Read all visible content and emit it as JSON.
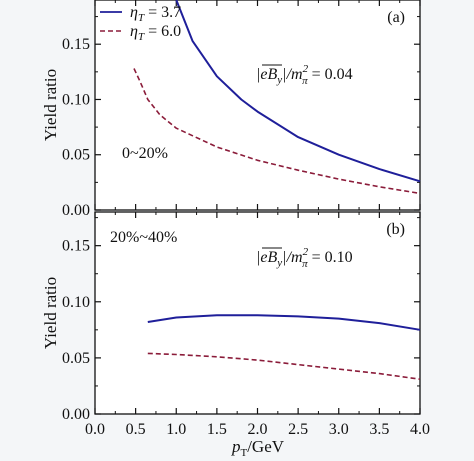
{
  "chart_data": {
    "xlabel_main": "p",
    "xlabel_sub": "T",
    "xlabel_unit": "/GeV",
    "xlim": [
      0.0,
      4.0
    ],
    "xticks": [
      "0.0",
      "0.5",
      "1.0",
      "1.5",
      "2.0",
      "2.5",
      "3.0",
      "3.5",
      "4.0"
    ],
    "colors": {
      "eta37": "#1f1f9a",
      "eta60": "#8b1c3a"
    },
    "legend": [
      {
        "main": "η",
        "sub": "T",
        "value": " = 3.7",
        "style": "solid"
      },
      {
        "main": "η",
        "sub": "T",
        "value": " = 6.0",
        "style": "dashed"
      }
    ],
    "panels": [
      {
        "type": "line",
        "tag": "(a)",
        "ylabel": "Yield ratio",
        "ylim": [
          0.0,
          0.19
        ],
        "yticks": [
          "0.00",
          "0.05",
          "0.10",
          "0.15"
        ],
        "centrality": "0~20%",
        "field_label": {
          "lhs": "|eB",
          "lhs_sub": "y",
          "mid": "|/m",
          "mid_sup": "2",
          "mid_sub": "π",
          "rhs": " = 0.04"
        },
        "series": [
          {
            "key": "eta37",
            "x": [
              1.0,
              1.2,
              1.5,
              1.8,
              2.0,
              2.5,
              3.0,
              3.5,
              4.0
            ],
            "y": [
              0.19,
              0.153,
              0.121,
              0.1,
              0.089,
              0.066,
              0.05,
              0.037,
              0.026
            ]
          },
          {
            "key": "eta60",
            "x": [
              0.48,
              0.55,
              0.65,
              0.8,
              1.0,
              1.5,
              2.0,
              2.5,
              3.0,
              3.5,
              4.0
            ],
            "y": [
              0.128,
              0.117,
              0.1,
              0.086,
              0.074,
              0.057,
              0.045,
              0.036,
              0.028,
              0.021,
              0.015
            ]
          }
        ]
      },
      {
        "type": "line",
        "tag": "(b)",
        "ylabel": "Yield ratio",
        "ylim": [
          0.0,
          0.18
        ],
        "yticks": [
          "0.00",
          "0.05",
          "0.10",
          "0.15"
        ],
        "centrality": "20%~40%",
        "field_label": {
          "lhs": "|eB",
          "lhs_sub": "y",
          "mid": "|/m",
          "mid_sup": "2",
          "mid_sub": "π",
          "rhs": " = 0.10"
        },
        "series": [
          {
            "key": "eta37",
            "x": [
              0.65,
              1.0,
              1.5,
              2.0,
              2.5,
              3.0,
              3.5,
              4.0
            ],
            "y": [
              0.082,
              0.086,
              0.088,
              0.088,
              0.087,
              0.085,
              0.081,
              0.075
            ]
          },
          {
            "key": "eta60",
            "x": [
              0.65,
              1.0,
              1.5,
              2.0,
              2.5,
              3.0,
              3.5,
              4.0
            ],
            "y": [
              0.054,
              0.053,
              0.051,
              0.048,
              0.044,
              0.04,
              0.036,
              0.031
            ]
          }
        ]
      }
    ]
  }
}
